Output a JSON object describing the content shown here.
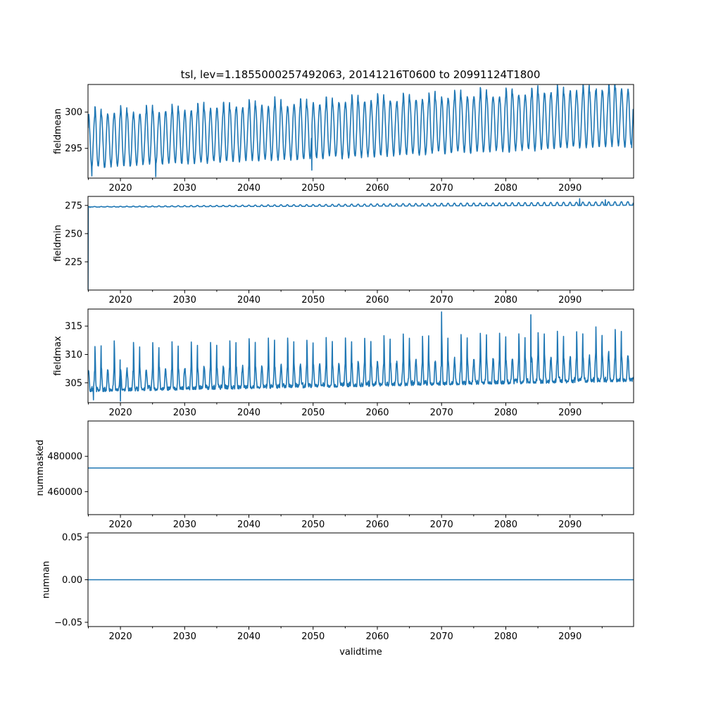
{
  "figure": {
    "title": "tsl, lev=1.1855000257492063, 20141216T0600 to 20991124T1800",
    "line_color": "#1f77b4"
  },
  "chart_data": [
    {
      "type": "line",
      "ylabel": "fieldmean",
      "xlabel": "",
      "xlim": [
        2014.95,
        2099.9
      ],
      "ylim": [
        290.9,
        303.8
      ],
      "xticks": [
        2020,
        2030,
        2040,
        2050,
        2060,
        2070,
        2080,
        2090
      ],
      "xtick_labels": [
        "2020",
        "2030",
        "2040",
        "2050",
        "2060",
        "2070",
        "2080",
        "2090"
      ],
      "yticks": [
        295,
        300
      ],
      "ytick_labels": [
        "295",
        "300"
      ],
      "series": [
        {
          "name": "fieldmean",
          "model": {
            "kind": "seasonal",
            "base_start": 296.0,
            "base_end": 299.3,
            "amp_start": 3.6,
            "amp_end": 3.9,
            "noise": 0.45,
            "spike_every": 4,
            "spike_amp": 1.0
          },
          "highlights": [
            [
              2014.95,
              297.8
            ],
            [
              2015.55,
              291.2
            ],
            [
              2025.5,
              291.1
            ],
            [
              2049.8,
              292.0
            ],
            [
              2070.0,
              302.1
            ],
            [
              2094.1,
              303.2
            ],
            [
              2097.1,
              303.3
            ],
            [
              2099.6,
              295.1
            ],
            [
              2099.9,
              299.4
            ]
          ]
        }
      ]
    },
    {
      "type": "line",
      "ylabel": "fieldmin",
      "xlabel": "",
      "xlim": [
        2014.95,
        2099.9
      ],
      "ylim": [
        200.0,
        283.0
      ],
      "xticks": [
        2020,
        2030,
        2040,
        2050,
        2060,
        2070,
        2080,
        2090
      ],
      "xtick_labels": [
        "2020",
        "2030",
        "2040",
        "2050",
        "2060",
        "2070",
        "2080",
        "2090"
      ],
      "yticks": [
        225,
        250,
        275
      ],
      "ytick_labels": [
        "225",
        "250",
        "275"
      ],
      "series": [
        {
          "name": "fieldmin",
          "model": {
            "kind": "min",
            "base_start": 273.6,
            "base_end": 275.2,
            "amp_start": 0.4,
            "amp_end": 3.2,
            "noise": 0.2,
            "spike_every": 0,
            "spike_amp": 0
          },
          "highlights": [
            [
              2014.95,
              200.5
            ],
            [
              2015.25,
              273.2
            ],
            [
              2091.5,
              281.0
            ],
            [
              2095.5,
              280.0
            ]
          ]
        }
      ]
    },
    {
      "type": "line",
      "ylabel": "fieldmax",
      "xlabel": "",
      "xlim": [
        2014.95,
        2099.9
      ],
      "ylim": [
        301.5,
        318.0
      ],
      "xticks": [
        2020,
        2030,
        2040,
        2050,
        2060,
        2070,
        2080,
        2090
      ],
      "xtick_labels": [
        "2020",
        "2030",
        "2040",
        "2050",
        "2060",
        "2070",
        "2080",
        "2090"
      ],
      "yticks": [
        305,
        310,
        315
      ],
      "ytick_labels": [
        "305",
        "310",
        "315"
      ],
      "series": [
        {
          "name": "fieldmax",
          "model": {
            "kind": "max",
            "base_start": 303.4,
            "base_end": 305.2,
            "amp_start": 3.5,
            "amp_end": 4.5,
            "noise": 1.0,
            "spike_every": 3,
            "spike_amp": 4.5
          },
          "highlights": [
            [
              2014.95,
              307.0
            ],
            [
              2015.8,
              302.0
            ],
            [
              2020.0,
              301.8
            ],
            [
              2070.0,
              317.5
            ],
            [
              2083.9,
              317.0
            ],
            [
              2099.9,
              306.0
            ]
          ]
        }
      ]
    },
    {
      "type": "line",
      "ylabel": "nummasked",
      "xlabel": "",
      "xlim": [
        2014.95,
        2099.9
      ],
      "ylim": [
        447000,
        500000
      ],
      "xticks": [
        2020,
        2030,
        2040,
        2050,
        2060,
        2070,
        2080,
        2090
      ],
      "xtick_labels": [
        "2020",
        "2030",
        "2040",
        "2050",
        "2060",
        "2070",
        "2080",
        "2090"
      ],
      "yticks": [
        460000,
        480000
      ],
      "ytick_labels": [
        "460000",
        "480000"
      ],
      "series": [
        {
          "name": "nummasked",
          "constant": 473400
        }
      ]
    },
    {
      "type": "line",
      "ylabel": "numnan",
      "xlabel": "validtime",
      "xlim": [
        2014.95,
        2099.9
      ],
      "ylim": [
        -0.055,
        0.055
      ],
      "xticks": [
        2020,
        2030,
        2040,
        2050,
        2060,
        2070,
        2080,
        2090
      ],
      "xtick_labels": [
        "2020",
        "2030",
        "2040",
        "2050",
        "2060",
        "2070",
        "2080",
        "2090"
      ],
      "yticks": [
        -0.05,
        0.0,
        0.05
      ],
      "ytick_labels": [
        "−0.05",
        "0.00",
        "0.05"
      ],
      "series": [
        {
          "name": "numnan",
          "constant": 0.0
        }
      ]
    }
  ]
}
